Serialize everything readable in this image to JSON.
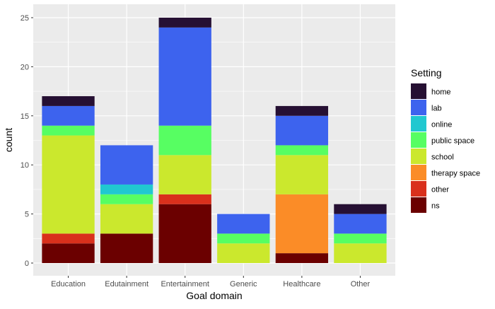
{
  "chart_data": {
    "type": "bar",
    "stacked": true,
    "title": "",
    "xlabel": "Goal domain",
    "ylabel": "count",
    "ylim": [
      0,
      25.6
    ],
    "yticks": [
      0,
      5,
      10,
      15,
      20,
      25
    ],
    "grid": true,
    "legend_position": "right",
    "legend_title": "Setting",
    "categories": [
      "Education",
      "Edutainment",
      "Entertainment",
      "Generic",
      "Healthcare",
      "Other"
    ],
    "series": [
      {
        "name": "ns",
        "color": "#6b0000",
        "values": [
          2,
          3,
          6,
          0,
          1,
          0
        ]
      },
      {
        "name": "other",
        "color": "#d9301c",
        "values": [
          1,
          0,
          1,
          0,
          0,
          0
        ]
      },
      {
        "name": "therapy space",
        "color": "#fb8c27",
        "values": [
          0,
          0,
          0,
          0,
          6,
          0
        ]
      },
      {
        "name": "school",
        "color": "#cbe82d",
        "values": [
          10,
          3,
          4,
          2,
          4,
          2
        ]
      },
      {
        "name": "public space",
        "color": "#57fe62",
        "values": [
          1,
          1,
          3,
          1,
          1,
          1
        ]
      },
      {
        "name": "online",
        "color": "#20c8d0",
        "values": [
          0,
          1,
          0,
          0,
          0,
          0
        ]
      },
      {
        "name": "lab",
        "color": "#3d63ee",
        "values": [
          2,
          4,
          10,
          2,
          3,
          2
        ]
      },
      {
        "name": "home",
        "color": "#261033",
        "values": [
          1,
          0,
          1,
          0,
          1,
          1
        ]
      }
    ],
    "legend_order": [
      "home",
      "lab",
      "online",
      "public space",
      "school",
      "therapy space",
      "other",
      "ns"
    ]
  }
}
